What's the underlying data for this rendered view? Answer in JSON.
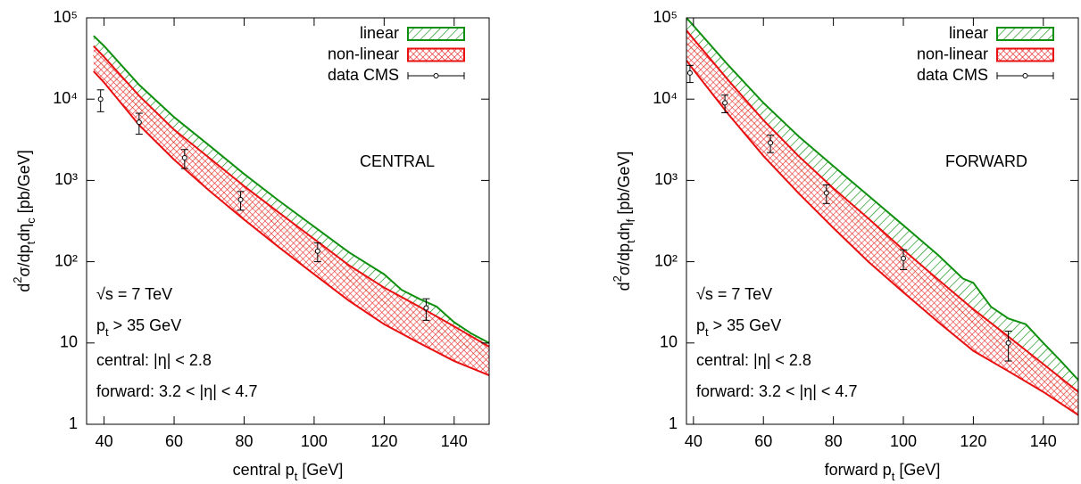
{
  "chart_data": [
    {
      "type": "band",
      "annotation": "CENTRAL",
      "notes": [
        "√s = 7 TeV",
        [
          "p",
          "t",
          " > 35 GeV"
        ],
        "central: |η| < 2.8",
        "forward: 3.2 < |η| < 4.7"
      ],
      "xlabel": [
        "central p",
        "t",
        " [GeV]"
      ],
      "ylabel": [
        "d",
        "2",
        "σ/dp",
        "t",
        "dη",
        "c",
        " [pb/GeV]"
      ],
      "xlim": [
        35,
        150
      ],
      "ylim": [
        1,
        100000
      ],
      "log_y": true,
      "xticks": [
        40,
        60,
        80,
        100,
        120,
        140
      ],
      "yticks": [
        1,
        10,
        {
          "value": 100,
          "label": "10²"
        },
        {
          "value": 1000,
          "label": "10³"
        },
        {
          "value": 10000,
          "label": "10⁴"
        },
        {
          "value": 100000,
          "label": "10⁵"
        }
      ],
      "legend": "upper right",
      "series": [
        {
          "name": "linear",
          "color": "#109010",
          "fill": "hatch",
          "x": [
            37,
            40,
            50,
            60,
            70,
            80,
            90,
            100,
            110,
            120,
            125,
            130,
            135,
            140,
            145,
            150
          ],
          "upper": [
            60000,
            45000,
            15000,
            6000,
            2700,
            1200,
            560,
            270,
            130,
            70,
            45,
            35,
            28,
            18,
            13,
            10
          ],
          "lower": [
            35000,
            25000,
            8000,
            3000,
            1300,
            580,
            270,
            125,
            60,
            32,
            25,
            19,
            14,
            11,
            8.5,
            6.5
          ]
        },
        {
          "name": "non-linear",
          "color": "#e81010",
          "fill": "crosshatch",
          "x": [
            37,
            40,
            50,
            60,
            70,
            80,
            90,
            100,
            110,
            120,
            130,
            140,
            150
          ],
          "upper": [
            45000,
            33000,
            11000,
            4200,
            1900,
            850,
            400,
            190,
            90,
            48,
            28,
            16,
            9
          ],
          "lower": [
            22000,
            16000,
            4800,
            1800,
            750,
            330,
            150,
            70,
            33,
            17,
            10,
            6,
            4
          ]
        },
        {
          "name": "data CMS",
          "color": "#000000",
          "fill": "points",
          "x": [
            39,
            50,
            63,
            79,
            101,
            132
          ],
          "values": [
            10000,
            5200,
            1900,
            580,
            135,
            27
          ],
          "errors": [
            3000,
            1500,
            500,
            150,
            35,
            8
          ]
        }
      ]
    },
    {
      "type": "band",
      "annotation": "FORWARD",
      "notes": [
        "√s = 7 TeV",
        [
          "p",
          "t",
          " > 35 GeV"
        ],
        "central: |η| < 2.8",
        "forward: 3.2 < |η| < 4.7"
      ],
      "xlabel": [
        "forward p",
        "t",
        " [GeV]"
      ],
      "ylabel": [
        "d",
        "2",
        "σ/dp",
        "t",
        "dη",
        "f",
        " [pb/GeV]"
      ],
      "xlim": [
        38,
        150
      ],
      "ylim": [
        1,
        100000
      ],
      "log_y": true,
      "xticks": [
        40,
        60,
        80,
        100,
        120,
        140
      ],
      "yticks": [
        1,
        10,
        {
          "value": 100,
          "label": "10²"
        },
        {
          "value": 1000,
          "label": "10³"
        },
        {
          "value": 10000,
          "label": "10⁴"
        },
        {
          "value": 100000,
          "label": "10⁵"
        }
      ],
      "legend": "upper right",
      "series": [
        {
          "name": "linear",
          "color": "#109010",
          "fill": "hatch",
          "x": [
            38,
            40,
            50,
            60,
            70,
            80,
            90,
            100,
            110,
            117,
            120,
            125,
            130,
            135,
            140,
            145,
            150
          ],
          "upper": [
            100000,
            80000,
            26000,
            9000,
            3500,
            1500,
            650,
            280,
            120,
            62,
            55,
            28,
            20,
            17,
            10,
            6,
            3.5
          ],
          "lower": [
            50000,
            40000,
            12000,
            3800,
            1400,
            550,
            230,
            95,
            40,
            24,
            18,
            12,
            8,
            5.5,
            3.8,
            2.6,
            1.8
          ]
        },
        {
          "name": "non-linear",
          "color": "#e81010",
          "fill": "crosshatch",
          "x": [
            38,
            40,
            50,
            60,
            70,
            80,
            90,
            100,
            110,
            120,
            130,
            140,
            150
          ],
          "upper": [
            70000,
            55000,
            17000,
            5500,
            2000,
            800,
            340,
            140,
            60,
            26,
            12,
            5.5,
            2.5
          ],
          "lower": [
            30000,
            23000,
            6500,
            2000,
            700,
            260,
            100,
            42,
            18,
            8,
            4.5,
            2.5,
            1.3
          ]
        },
        {
          "name": "data CMS",
          "color": "#000000",
          "fill": "points",
          "x": [
            39,
            49,
            62,
            78,
            100,
            130
          ],
          "values": [
            21000,
            9000,
            2900,
            700,
            110,
            10
          ],
          "errors": [
            5000,
            2200,
            700,
            180,
            30,
            4
          ]
        }
      ]
    }
  ]
}
